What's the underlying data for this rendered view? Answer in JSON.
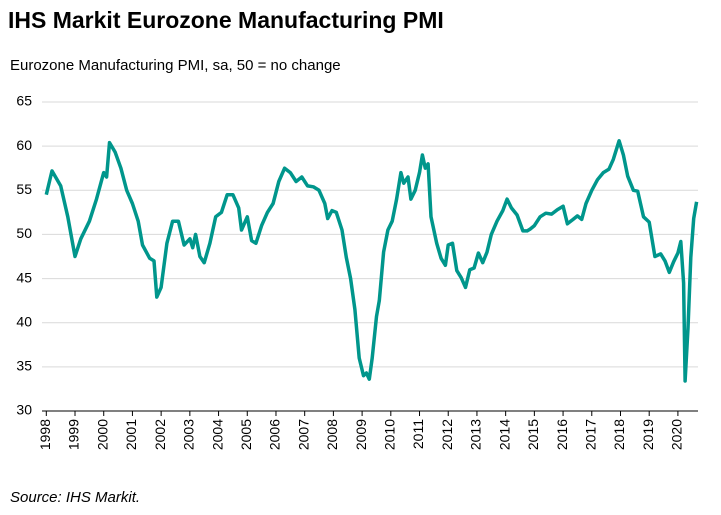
{
  "chart_data": {
    "type": "line",
    "title": "IHS Markit Eurozone Manufacturing PMI",
    "subtitle": "Eurozone Manufacturing PMI, sa, 50 = no change",
    "source": "Source: IHS Markit.",
    "color": "#00968c",
    "grid": true,
    "xlim": [
      1997.85,
      2020.7
    ],
    "xticks": [
      1998,
      1999,
      2000,
      2001,
      2002,
      2003,
      2004,
      2005,
      2006,
      2007,
      2008,
      2009,
      2010,
      2011,
      2012,
      2013,
      2014,
      2015,
      2016,
      2017,
      2018,
      2019,
      2020
    ],
    "ylim": [
      30,
      65
    ],
    "yticks": [
      30,
      35,
      40,
      45,
      50,
      55,
      60,
      65
    ],
    "x": [
      1998.0,
      1998.2,
      1998.5,
      1998.75,
      1999.0,
      1999.2,
      1999.5,
      1999.75,
      2000.0,
      2000.1,
      2000.2,
      2000.4,
      2000.6,
      2000.8,
      2001.0,
      2001.2,
      2001.35,
      2001.6,
      2001.75,
      2001.85,
      2002.0,
      2002.2,
      2002.4,
      2002.6,
      2002.8,
      2003.0,
      2003.1,
      2003.2,
      2003.35,
      2003.5,
      2003.7,
      2003.9,
      2004.1,
      2004.3,
      2004.5,
      2004.7,
      2004.8,
      2005.0,
      2005.15,
      2005.3,
      2005.5,
      2005.7,
      2005.9,
      2006.1,
      2006.3,
      2006.5,
      2006.7,
      2006.9,
      2007.1,
      2007.3,
      2007.5,
      2007.7,
      2007.8,
      2007.95,
      2008.1,
      2008.3,
      2008.45,
      2008.6,
      2008.75,
      2008.9,
      2009.05,
      2009.15,
      2009.25,
      2009.35,
      2009.5,
      2009.6,
      2009.75,
      2009.9,
      2010.05,
      2010.2,
      2010.35,
      2010.45,
      2010.6,
      2010.7,
      2010.85,
      2011.0,
      2011.1,
      2011.2,
      2011.3,
      2011.4,
      2011.6,
      2011.75,
      2011.9,
      2012.0,
      2012.15,
      2012.3,
      2012.45,
      2012.6,
      2012.75,
      2012.9,
      2013.05,
      2013.2,
      2013.35,
      2013.5,
      2013.7,
      2013.9,
      2014.05,
      2014.2,
      2014.4,
      2014.6,
      2014.75,
      2014.85,
      2015.0,
      2015.2,
      2015.4,
      2015.6,
      2015.8,
      2016.0,
      2016.15,
      2016.35,
      2016.5,
      2016.65,
      2016.8,
      2017.0,
      2017.2,
      2017.4,
      2017.6,
      2017.75,
      2017.95,
      2018.1,
      2018.25,
      2018.45,
      2018.6,
      2018.8,
      2019.0,
      2019.2,
      2019.4,
      2019.55,
      2019.7,
      2019.85,
      2020.0,
      2020.1,
      2020.2,
      2020.25,
      2020.35,
      2020.45,
      2020.55,
      2020.65
    ],
    "values": [
      54.5,
      57.2,
      55.5,
      52,
      47.5,
      49.5,
      51.5,
      54,
      57,
      56.5,
      60.4,
      59.3,
      57.5,
      55,
      53.5,
      51.5,
      48.8,
      47.3,
      47.0,
      42.9,
      44.0,
      49,
      51.5,
      51.5,
      48.8,
      49.5,
      48.5,
      50,
      47.5,
      46.8,
      49,
      52,
      52.5,
      54.5,
      54.5,
      53,
      50.5,
      52,
      49.3,
      49,
      51,
      52.5,
      53.5,
      56,
      57.5,
      57,
      56,
      56.5,
      55.5,
      55.4,
      55,
      53.5,
      51.8,
      52.7,
      52.5,
      50.5,
      47.4,
      45,
      41.5,
      36,
      34,
      34.3,
      33.6,
      36,
      40.7,
      42.5,
      48,
      50.5,
      51.5,
      54,
      57,
      55.8,
      56.5,
      54,
      55,
      57,
      59,
      57.5,
      58,
      52,
      49,
      47.3,
      46.5,
      48.8,
      49,
      45.9,
      45.1,
      44,
      46,
      46.2,
      47.9,
      46.8,
      48,
      50,
      51.5,
      52.7,
      54,
      53,
      52.2,
      50.4,
      50.4,
      50.6,
      51,
      52,
      52.4,
      52.3,
      52.8,
      53.2,
      51.2,
      51.7,
      52.1,
      51.7,
      53.5,
      55,
      56.2,
      57,
      57.4,
      58.5,
      60.6,
      59,
      56.6,
      55,
      54.9,
      52,
      51.4,
      47.5,
      47.8,
      47,
      45.7,
      46.9,
      47.9,
      49.2,
      44.5,
      33.4,
      39.4,
      47.4,
      51.8,
      53.7
    ]
  }
}
